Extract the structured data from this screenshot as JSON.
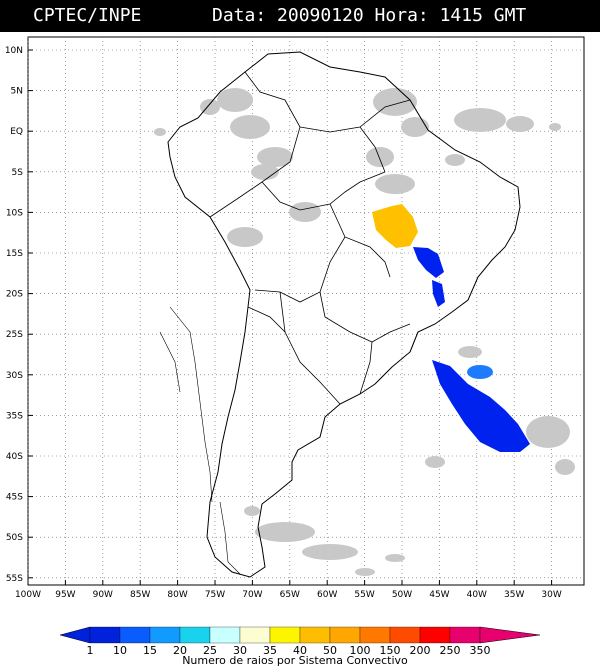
{
  "header": {
    "left": "CPTEC/INPE",
    "right": "Data: 20090120 Hora: 1415 GMT"
  },
  "map": {
    "lat_labels": [
      "10N",
      "5N",
      "EQ",
      "5S",
      "10S",
      "15S",
      "20S",
      "25S",
      "30S",
      "35S",
      "40S",
      "45S",
      "50S",
      "55S"
    ],
    "lon_labels": [
      "100W",
      "95W",
      "90W",
      "85W",
      "80W",
      "75W",
      "70W",
      "65W",
      "60W",
      "55W",
      "50W",
      "45W",
      "40W",
      "35W",
      "30W"
    ],
    "grid_style": "dotted",
    "legend": {
      "ticks": [
        "1",
        "10",
        "15",
        "20",
        "25",
        "30",
        "35",
        "40",
        "50",
        "100",
        "150",
        "200",
        "250",
        "350"
      ],
      "colors": [
        "#0022dd",
        "#0a5cff",
        "#119bff",
        "#19d2ee",
        "#c8ffff",
        "#fdfdd2",
        "#fdf500",
        "#ffbd00",
        "#ffa600",
        "#ff7800",
        "#ff4b00",
        "#ff0000",
        "#e8006f"
      ],
      "caption": "Numero de raios por Sistema Convectivo"
    },
    "colors": {
      "cloud": "#c8c8c8",
      "blue": "#0022ee",
      "blue_light": "#1d7bff",
      "orange": "#ffc000",
      "coast": "#000000"
    }
  }
}
